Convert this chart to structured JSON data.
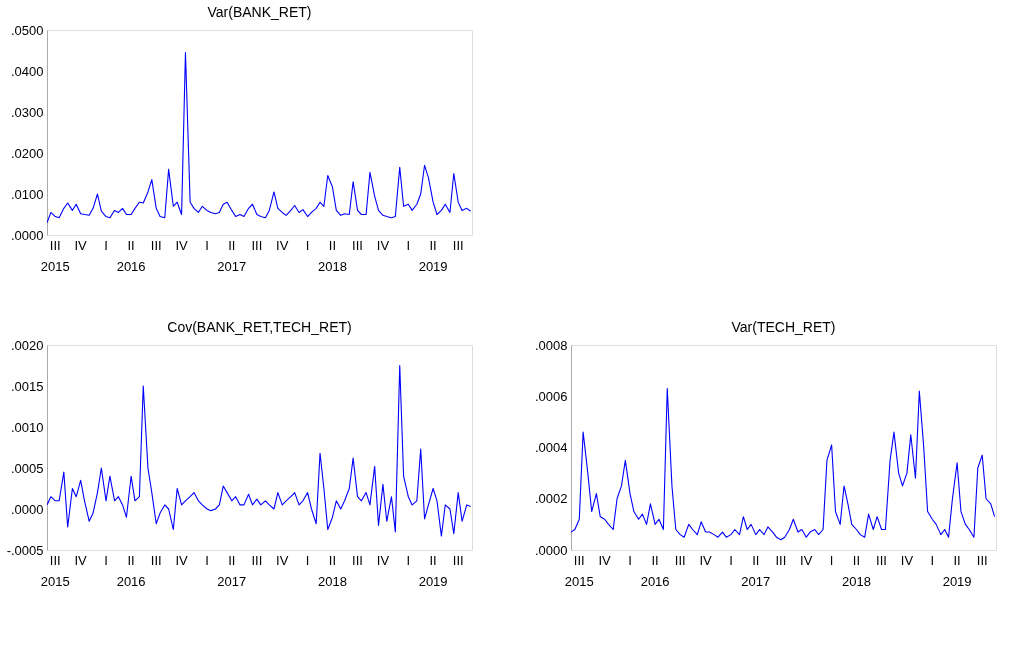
{
  "chart_data": [
    {
      "type": "line",
      "title": "Var(BANK_RET)",
      "x": [
        "2015-06-01",
        "2015-06-15",
        "2015-07-01",
        "2015-07-15",
        "2015-08-01",
        "2015-08-15",
        "2015-09-01",
        "2015-09-15",
        "2015-10-01",
        "2015-10-15",
        "2015-11-01",
        "2015-11-15",
        "2015-12-01",
        "2015-12-15",
        "2016-01-01",
        "2016-01-15",
        "2016-02-01",
        "2016-02-15",
        "2016-03-01",
        "2016-03-15",
        "2016-04-01",
        "2016-04-15",
        "2016-05-01",
        "2016-05-15",
        "2016-06-01",
        "2016-06-15",
        "2016-07-01",
        "2016-07-15",
        "2016-08-01",
        "2016-08-15",
        "2016-09-01",
        "2016-09-15",
        "2016-10-01",
        "2016-10-15",
        "2016-11-01",
        "2016-11-15",
        "2016-12-01",
        "2016-12-15",
        "2017-01-01",
        "2017-01-15",
        "2017-02-01",
        "2017-02-15",
        "2017-03-01",
        "2017-03-15",
        "2017-04-01",
        "2017-04-15",
        "2017-05-01",
        "2017-05-15",
        "2017-06-01",
        "2017-06-15",
        "2017-07-01",
        "2017-07-15",
        "2017-08-01",
        "2017-08-15",
        "2017-09-01",
        "2017-09-15",
        "2017-10-01",
        "2017-10-15",
        "2017-11-01",
        "2017-11-15",
        "2017-12-01",
        "2017-12-15",
        "2018-01-01",
        "2018-01-15",
        "2018-02-01",
        "2018-02-15",
        "2018-03-01",
        "2018-03-15",
        "2018-04-01",
        "2018-04-15",
        "2018-05-01",
        "2018-05-15",
        "2018-06-01",
        "2018-06-15",
        "2018-07-01",
        "2018-07-15",
        "2018-08-01",
        "2018-08-15",
        "2018-09-01",
        "2018-09-15",
        "2018-10-01",
        "2018-10-15",
        "2018-11-01",
        "2018-11-15",
        "2018-12-01",
        "2018-12-15",
        "2019-01-01",
        "2019-01-15",
        "2019-02-01",
        "2019-02-15",
        "2019-03-01",
        "2019-03-15",
        "2019-04-01",
        "2019-04-15",
        "2019-05-01",
        "2019-05-15",
        "2019-06-01",
        "2019-06-15",
        "2019-07-01",
        "2019-07-15",
        "2019-08-01",
        "2019-08-15"
      ],
      "series": [
        {
          "color": "#0000ff",
          "values": [
            0.003,
            0.0055,
            0.0045,
            0.0042,
            0.0065,
            0.0078,
            0.006,
            0.0075,
            0.0052,
            0.005,
            0.0048,
            0.0065,
            0.01,
            0.0058,
            0.0045,
            0.0042,
            0.006,
            0.0055,
            0.0065,
            0.005,
            0.005,
            0.0065,
            0.008,
            0.0078,
            0.0105,
            0.0135,
            0.0065,
            0.0045,
            0.0042,
            0.016,
            0.007,
            0.008,
            0.005,
            0.0445,
            0.008,
            0.0065,
            0.0055,
            0.007,
            0.006,
            0.0055,
            0.0052,
            0.0055,
            0.0075,
            0.008,
            0.006,
            0.0045,
            0.005,
            0.0045,
            0.0065,
            0.0075,
            0.005,
            0.0045,
            0.0042,
            0.006,
            0.0105,
            0.0065,
            0.0055,
            0.0048,
            0.006,
            0.0072,
            0.0055,
            0.0062,
            0.0045,
            0.0055,
            0.0065,
            0.008,
            0.007,
            0.0145,
            0.0117,
            0.006,
            0.0048,
            0.0052,
            0.005,
            0.013,
            0.006,
            0.005,
            0.005,
            0.0153,
            0.0095,
            0.006,
            0.0048,
            0.0045,
            0.0042,
            0.0045,
            0.0165,
            0.007,
            0.0075,
            0.006,
            0.0075,
            0.01,
            0.017,
            0.014,
            0.008,
            0.005,
            0.006,
            0.0075,
            0.0055,
            0.015,
            0.008,
            0.006,
            0.0065,
            0.0058
          ]
        }
      ],
      "xlim": [
        "2015-06-01",
        "2019-08-20"
      ],
      "xticks": [
        {
          "value": "2015-07-01",
          "label": "III\n2015"
        },
        {
          "value": "2015-10-01",
          "label": "IV"
        },
        {
          "value": "2016-01-01",
          "label": "I"
        },
        {
          "value": "2016-04-01",
          "label": "II\n2016"
        },
        {
          "value": "2016-07-01",
          "label": "III"
        },
        {
          "value": "2016-10-01",
          "label": "IV"
        },
        {
          "value": "2017-01-01",
          "label": "I"
        },
        {
          "value": "2017-04-01",
          "label": "II\n2017"
        },
        {
          "value": "2017-07-01",
          "label": "III"
        },
        {
          "value": "2017-10-01",
          "label": "IV"
        },
        {
          "value": "2018-01-01",
          "label": "I"
        },
        {
          "value": "2018-04-01",
          "label": "II\n2018"
        },
        {
          "value": "2018-07-01",
          "label": "III"
        },
        {
          "value": "2018-10-01",
          "label": "IV"
        },
        {
          "value": "2019-01-01",
          "label": "I"
        },
        {
          "value": "2019-04-01",
          "label": "II\n2019"
        },
        {
          "value": "2019-07-01",
          "label": "III"
        }
      ],
      "ylim": [
        0,
        0.05
      ],
      "yticks": [
        {
          "value": 0,
          "label": ".0000"
        },
        {
          "value": 0.01,
          "label": ".0100"
        },
        {
          "value": 0.02,
          "label": ".0200"
        },
        {
          "value": 0.03,
          "label": ".0300"
        },
        {
          "value": 0.04,
          "label": ".0400"
        },
        {
          "value": 0.05,
          "label": ".0500"
        }
      ],
      "grid": false
    },
    {
      "type": "line",
      "title": "Cov(BANK_RET,TECH_RET)",
      "x": [
        "2015-06-01",
        "2015-06-15",
        "2015-07-01",
        "2015-07-15",
        "2015-08-01",
        "2015-08-15",
        "2015-09-01",
        "2015-09-15",
        "2015-10-01",
        "2015-10-15",
        "2015-11-01",
        "2015-11-15",
        "2015-12-01",
        "2015-12-15",
        "2016-01-01",
        "2016-01-15",
        "2016-02-01",
        "2016-02-15",
        "2016-03-01",
        "2016-03-15",
        "2016-04-01",
        "2016-04-15",
        "2016-05-01",
        "2016-05-15",
        "2016-06-01",
        "2016-06-15",
        "2016-07-01",
        "2016-07-15",
        "2016-08-01",
        "2016-08-15",
        "2016-09-01",
        "2016-09-15",
        "2016-10-01",
        "2016-10-15",
        "2016-11-01",
        "2016-11-15",
        "2016-12-01",
        "2016-12-15",
        "2017-01-01",
        "2017-01-15",
        "2017-02-01",
        "2017-02-15",
        "2017-03-01",
        "2017-03-15",
        "2017-04-01",
        "2017-04-15",
        "2017-05-01",
        "2017-05-15",
        "2017-06-01",
        "2017-06-15",
        "2017-07-01",
        "2017-07-15",
        "2017-08-01",
        "2017-08-15",
        "2017-09-01",
        "2017-09-15",
        "2017-10-01",
        "2017-10-15",
        "2017-11-01",
        "2017-11-15",
        "2017-12-01",
        "2017-12-15",
        "2018-01-01",
        "2018-01-15",
        "2018-02-01",
        "2018-02-15",
        "2018-03-01",
        "2018-03-15",
        "2018-04-01",
        "2018-04-15",
        "2018-05-01",
        "2018-05-15",
        "2018-06-01",
        "2018-06-15",
        "2018-07-01",
        "2018-07-15",
        "2018-08-01",
        "2018-08-15",
        "2018-09-01",
        "2018-09-15",
        "2018-10-01",
        "2018-10-15",
        "2018-11-01",
        "2018-11-15",
        "2018-12-01",
        "2018-12-15",
        "2019-01-01",
        "2019-01-15",
        "2019-02-01",
        "2019-02-15",
        "2019-03-01",
        "2019-03-15",
        "2019-04-01",
        "2019-04-15",
        "2019-05-01",
        "2019-05-15",
        "2019-06-01",
        "2019-06-15",
        "2019-07-01",
        "2019-07-15",
        "2019-08-01",
        "2019-08-15"
      ],
      "series": [
        {
          "color": "#0000ff",
          "values": [
            5e-05,
            0.00015,
            0.0001,
            0.0001,
            0.00045,
            -0.00022,
            0.00025,
            0.00015,
            0.00035,
            0.0001,
            -0.00015,
            -5e-05,
            0.0002,
            0.0005,
            0.0001,
            0.0004,
            0.0001,
            0.00015,
            5e-05,
            -0.0001,
            0.0004,
            0.0001,
            0.00015,
            0.0015,
            0.0005,
            0.0002,
            -0.00018,
            -5e-05,
            5e-05,
            0.0,
            -0.00025,
            0.00025,
            5e-05,
            0.0001,
            0.00015,
            0.0002,
            0.0001,
            5e-05,
            0.0,
            -2e-05,
            0.0,
            5e-05,
            0.00028,
            0.0002,
            0.0001,
            0.00015,
            5e-05,
            5e-05,
            0.00018,
            5e-05,
            0.00012,
            5e-05,
            0.0001,
            5e-05,
            0.0,
            0.0002,
            5e-05,
            0.0001,
            0.00015,
            0.0002,
            5e-05,
            0.0001,
            0.0002,
            0.0,
            -0.00018,
            0.00068,
            0.00025,
            -0.00025,
            -0.0001,
            0.0001,
            0.0,
            0.0001,
            0.00025,
            0.00062,
            0.00015,
            0.0001,
            0.0002,
            5e-05,
            0.00052,
            -0.0002,
            0.0003,
            -0.00015,
            0.00015,
            -0.00028,
            0.00175,
            0.0004,
            0.00015,
            5e-05,
            0.0001,
            0.00073,
            -0.00012,
            5e-05,
            0.00025,
            0.0001,
            -0.00033,
            5e-05,
            0.0,
            -0.0003,
            0.0002,
            -0.00015,
            5e-05,
            3e-05
          ]
        }
      ],
      "xlim": [
        "2015-06-01",
        "2019-08-20"
      ],
      "xticks": [
        {
          "value": "2015-07-01",
          "label": "III\n2015"
        },
        {
          "value": "2015-10-01",
          "label": "IV"
        },
        {
          "value": "2016-01-01",
          "label": "I"
        },
        {
          "value": "2016-04-01",
          "label": "II\n2016"
        },
        {
          "value": "2016-07-01",
          "label": "III"
        },
        {
          "value": "2016-10-01",
          "label": "IV"
        },
        {
          "value": "2017-01-01",
          "label": "I"
        },
        {
          "value": "2017-04-01",
          "label": "II\n2017"
        },
        {
          "value": "2017-07-01",
          "label": "III"
        },
        {
          "value": "2017-10-01",
          "label": "IV"
        },
        {
          "value": "2018-01-01",
          "label": "I"
        },
        {
          "value": "2018-04-01",
          "label": "II\n2018"
        },
        {
          "value": "2018-07-01",
          "label": "III"
        },
        {
          "value": "2018-10-01",
          "label": "IV"
        },
        {
          "value": "2019-01-01",
          "label": "I"
        },
        {
          "value": "2019-04-01",
          "label": "II\n2019"
        },
        {
          "value": "2019-07-01",
          "label": "III"
        }
      ],
      "ylim": [
        -0.0005,
        0.002
      ],
      "yticks": [
        {
          "value": -0.0005,
          "label": "-.0005"
        },
        {
          "value": 0,
          "label": ".0000"
        },
        {
          "value": 0.0005,
          "label": ".0005"
        },
        {
          "value": 0.001,
          "label": ".0010"
        },
        {
          "value": 0.0015,
          "label": ".0015"
        },
        {
          "value": 0.002,
          "label": ".0020"
        }
      ],
      "grid": false
    },
    {
      "type": "line",
      "title": "Var(TECH_RET)",
      "x": [
        "2015-06-01",
        "2015-06-15",
        "2015-07-01",
        "2015-07-15",
        "2015-08-01",
        "2015-08-15",
        "2015-09-01",
        "2015-09-15",
        "2015-10-01",
        "2015-10-15",
        "2015-11-01",
        "2015-11-15",
        "2015-12-01",
        "2015-12-15",
        "2016-01-01",
        "2016-01-15",
        "2016-02-01",
        "2016-02-15",
        "2016-03-01",
        "2016-03-15",
        "2016-04-01",
        "2016-04-15",
        "2016-05-01",
        "2016-05-15",
        "2016-06-01",
        "2016-06-15",
        "2016-07-01",
        "2016-07-15",
        "2016-08-01",
        "2016-08-15",
        "2016-09-01",
        "2016-09-15",
        "2016-10-01",
        "2016-10-15",
        "2016-11-01",
        "2016-11-15",
        "2016-12-01",
        "2016-12-15",
        "2017-01-01",
        "2017-01-15",
        "2017-02-01",
        "2017-02-15",
        "2017-03-01",
        "2017-03-15",
        "2017-04-01",
        "2017-04-15",
        "2017-05-01",
        "2017-05-15",
        "2017-06-01",
        "2017-06-15",
        "2017-07-01",
        "2017-07-15",
        "2017-08-01",
        "2017-08-15",
        "2017-09-01",
        "2017-09-15",
        "2017-10-01",
        "2017-10-15",
        "2017-11-01",
        "2017-11-15",
        "2017-12-01",
        "2017-12-15",
        "2018-01-01",
        "2018-01-15",
        "2018-02-01",
        "2018-02-15",
        "2018-03-01",
        "2018-03-15",
        "2018-04-01",
        "2018-04-15",
        "2018-05-01",
        "2018-05-15",
        "2018-06-01",
        "2018-06-15",
        "2018-07-01",
        "2018-07-15",
        "2018-08-01",
        "2018-08-15",
        "2018-09-01",
        "2018-09-15",
        "2018-10-01",
        "2018-10-15",
        "2018-11-01",
        "2018-11-15",
        "2018-12-01",
        "2018-12-15",
        "2019-01-01",
        "2019-01-15",
        "2019-02-01",
        "2019-02-15",
        "2019-03-01",
        "2019-03-15",
        "2019-04-01",
        "2019-04-15",
        "2019-05-01",
        "2019-05-15",
        "2019-06-01",
        "2019-06-15",
        "2019-07-01",
        "2019-07-15",
        "2019-08-01",
        "2019-08-15"
      ],
      "series": [
        {
          "color": "#0000ff",
          "values": [
            7e-05,
            8e-05,
            0.00012,
            0.00046,
            0.0003,
            0.00015,
            0.00022,
            0.00013,
            0.00012,
            0.0001,
            8e-05,
            0.0002,
            0.00025,
            0.00035,
            0.00022,
            0.00015,
            0.00012,
            0.00014,
            0.0001,
            0.00018,
            0.0001,
            0.00012,
            8e-05,
            0.00063,
            0.00025,
            8e-05,
            6e-05,
            5e-05,
            0.0001,
            8e-05,
            6e-05,
            0.00011,
            7e-05,
            7e-05,
            6e-05,
            5e-05,
            7e-05,
            5e-05,
            6e-05,
            8e-05,
            6e-05,
            0.00013,
            8e-05,
            0.0001,
            6e-05,
            8e-05,
            6e-05,
            9e-05,
            7e-05,
            5e-05,
            4e-05,
            5e-05,
            8e-05,
            0.00012,
            7e-05,
            8e-05,
            5e-05,
            7e-05,
            8e-05,
            6e-05,
            8e-05,
            0.00035,
            0.00041,
            0.00015,
            0.0001,
            0.00025,
            0.00018,
            0.0001,
            8e-05,
            6e-05,
            5e-05,
            0.00014,
            8e-05,
            0.00013,
            8e-05,
            8e-05,
            0.00035,
            0.00046,
            0.0003,
            0.00025,
            0.0003,
            0.00045,
            0.00028,
            0.00062,
            0.0004,
            0.00015,
            0.00012,
            0.0001,
            6e-05,
            8e-05,
            5e-05,
            0.0002,
            0.00034,
            0.00015,
            0.0001,
            8e-05,
            5e-05,
            0.00032,
            0.00037,
            0.0002,
            0.00018,
            0.00013
          ]
        }
      ],
      "xlim": [
        "2015-06-01",
        "2019-08-20"
      ],
      "xticks": [
        {
          "value": "2015-07-01",
          "label": "III\n2015"
        },
        {
          "value": "2015-10-01",
          "label": "IV"
        },
        {
          "value": "2016-01-01",
          "label": "I"
        },
        {
          "value": "2016-04-01",
          "label": "II\n2016"
        },
        {
          "value": "2016-07-01",
          "label": "III"
        },
        {
          "value": "2016-10-01",
          "label": "IV"
        },
        {
          "value": "2017-01-01",
          "label": "I"
        },
        {
          "value": "2017-04-01",
          "label": "II\n2017"
        },
        {
          "value": "2017-07-01",
          "label": "III"
        },
        {
          "value": "2017-10-01",
          "label": "IV"
        },
        {
          "value": "2018-01-01",
          "label": "I"
        },
        {
          "value": "2018-04-01",
          "label": "II\n2018"
        },
        {
          "value": "2018-07-01",
          "label": "III"
        },
        {
          "value": "2018-10-01",
          "label": "IV"
        },
        {
          "value": "2019-01-01",
          "label": "I"
        },
        {
          "value": "2019-04-01",
          "label": "II\n2019"
        },
        {
          "value": "2019-07-01",
          "label": "III"
        }
      ],
      "ylim": [
        0,
        0.0008
      ],
      "yticks": [
        {
          "value": 0,
          "label": ".0000"
        },
        {
          "value": 0.0002,
          "label": ".0002"
        },
        {
          "value": 0.0004,
          "label": ".0004"
        },
        {
          "value": 0.0006,
          "label": ".0006"
        },
        {
          "value": 0.0008,
          "label": ".0008"
        }
      ],
      "grid": false
    }
  ]
}
